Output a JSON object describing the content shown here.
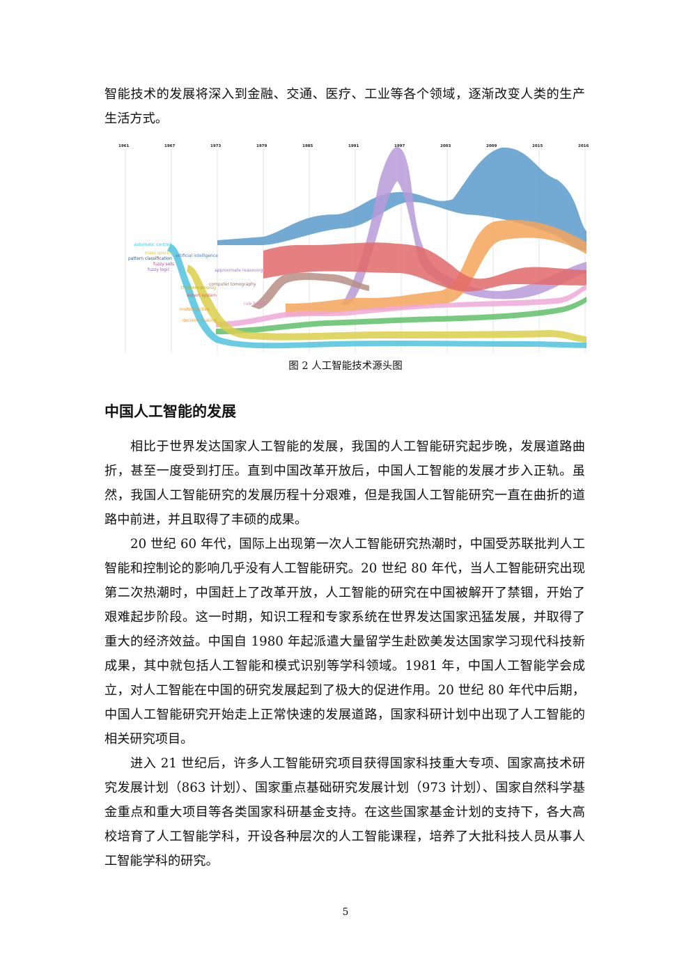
{
  "intro_text": "智能技术的发展将深入到金融、交通、医疗、工业等各个领域，逐渐改变人类的生产生活方式。",
  "figure": {
    "caption": "图 2  人工智能技术源头图",
    "years": [
      "1961",
      "1967",
      "1973",
      "1979",
      "1985",
      "1991",
      "1997",
      "2003",
      "2009",
      "2015",
      "2016"
    ],
    "topics": [
      {
        "label": "automatic control",
        "color": "#4fc3dd"
      },
      {
        "label": "mass spectra",
        "color": "#e3c63a"
      },
      {
        "label": "pattern classification",
        "color": "#2b5a8a"
      },
      {
        "label": "fuzzy sets",
        "color": "#cc3b8a"
      },
      {
        "label": "fuzzy logic",
        "color": "#8e5cc0"
      },
      {
        "label": "artificial intelligence",
        "color": "#3a7ab8"
      },
      {
        "label": "approximate reasoning",
        "color": "#9f77c9"
      },
      {
        "label": "computer tomography",
        "color": "#9e6b5a"
      },
      {
        "label": "theorem proving",
        "color": "#b8ae20"
      },
      {
        "label": "expert system",
        "color": "#e05a5a"
      },
      {
        "label": "rule based",
        "color": "#e378c5"
      },
      {
        "label": "multiobjective",
        "color": "#f5932a"
      },
      {
        "label": "decision making",
        "color": "#f39a2b"
      }
    ],
    "streams": [
      {
        "name": "blue",
        "color": "#5b9bcb"
      },
      {
        "name": "purple",
        "color": "#b79ad8"
      },
      {
        "name": "orange",
        "color": "#f5a45a"
      },
      {
        "name": "red",
        "color": "#e26a6a"
      },
      {
        "name": "brown",
        "color": "#b78f85"
      },
      {
        "name": "pink",
        "color": "#f0a8d8"
      },
      {
        "name": "green",
        "color": "#5fbf6a"
      },
      {
        "name": "yellow",
        "color": "#d9cf4a"
      },
      {
        "name": "cyan",
        "color": "#4fc3dd"
      }
    ]
  },
  "section_heading": "中国人工智能的发展",
  "paragraphs": [
    "相比于世界发达国家人工智能的发展，我国的人工智能研究起步晚，发展道路曲折，甚至一度受到打压。直到中国改革开放后，中国人工智能的发展才步入正轨。虽然，我国人工智能研究的发展历程十分艰难，但是我国人工智能研究一直在曲折的道路中前进，并且取得了丰硕的成果。",
    "20 世纪 60 年代，国际上出现第一次人工智能研究热潮时，中国受苏联批判人工智能和控制论的影响几乎没有人工智能研究。20 世纪 80 年代，当人工智能研究出现第二次热潮时，中国赶上了改革开放，人工智能的研究在中国被解开了禁锢，开始了艰难起步阶段。这一时期，知识工程和专家系统在世界发达国家迅猛发展，并取得了重大的经济效益。中国自 1980 年起派遣大量留学生赴欧美发达国家学习现代科技新成果，其中就包括人工智能和模式识别等学科领域。1981 年，中国人工智能学会成立，对人工智能在中国的研究发展起到了极大的促进作用。20 世纪 80 年代中后期，中国人工智能研究开始走上正常快速的发展道路，国家科研计划中出现了人工智能的相关研究项目。",
    "进入 21 世纪后，许多人工智能研究项目获得国家科技重大专项、国家高技术研究发展计划（863 计划）、国家重点基础研究发展计划（973 计划）、国家自然科学基金重点和重大项目等各类国家科研基金支持。在这些国家基金计划的支持下，各大高校培育了人工智能学科，开设各种层次的人工智能课程，培养了大批科技人员从事人工智能学科的研究。"
  ],
  "page_number": "5"
}
